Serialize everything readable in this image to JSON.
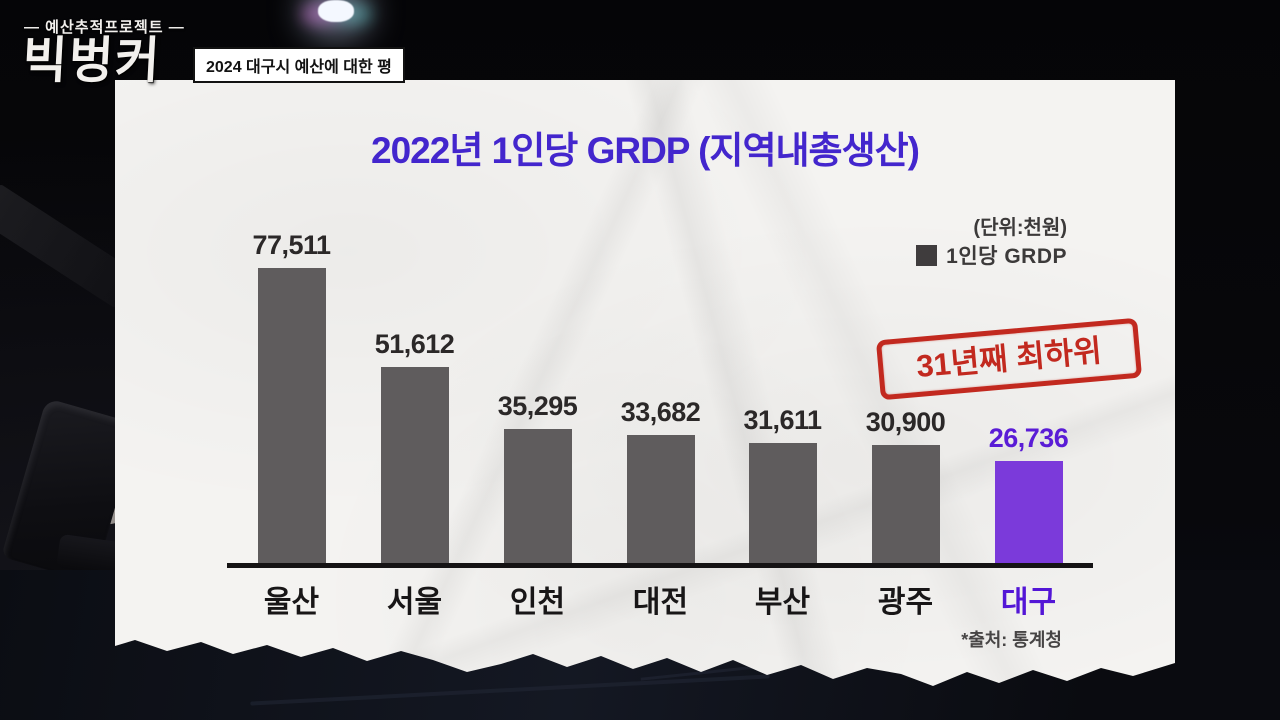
{
  "broadcast": {
    "logo_top": "— 예산추적프로젝트 —",
    "logo_main": "빅벙커",
    "caption": "2024 대구시 예산에 대한 평"
  },
  "chart": {
    "title": "2022년 1인당 GRDP (지역내총생산)",
    "unit_note": "(단위:천원)",
    "legend_label": "1인당 GRDP",
    "stamp": "31년째 최하위",
    "source": "*출처: 통계청"
  },
  "chart_data": {
    "type": "bar",
    "title": "2022년 1인당 GRDP (지역내총생산)",
    "unit": "천원",
    "categories": [
      "울산",
      "서울",
      "인천",
      "대전",
      "부산",
      "광주",
      "대구"
    ],
    "values": [
      77511,
      51612,
      35295,
      33682,
      31611,
      30900,
      26736
    ],
    "value_labels": [
      "77,511",
      "51,612",
      "35,295",
      "33,682",
      "31,611",
      "30,900",
      "26,736"
    ],
    "legend": [
      "1인당 GRDP"
    ],
    "legend_position": "top-right",
    "highlight_index": 6,
    "annotation": "31년째 최하위",
    "ylim": [
      0,
      80000
    ],
    "grid": false,
    "colors": {
      "bar": "#5f5c5d",
      "highlight_bar": "#7b3ada",
      "highlight_text": "#5a1cd6",
      "title": "#4326cd",
      "stamp_red": "#c2291f",
      "axis": "#151314",
      "paper": "#f4f3f1"
    }
  }
}
